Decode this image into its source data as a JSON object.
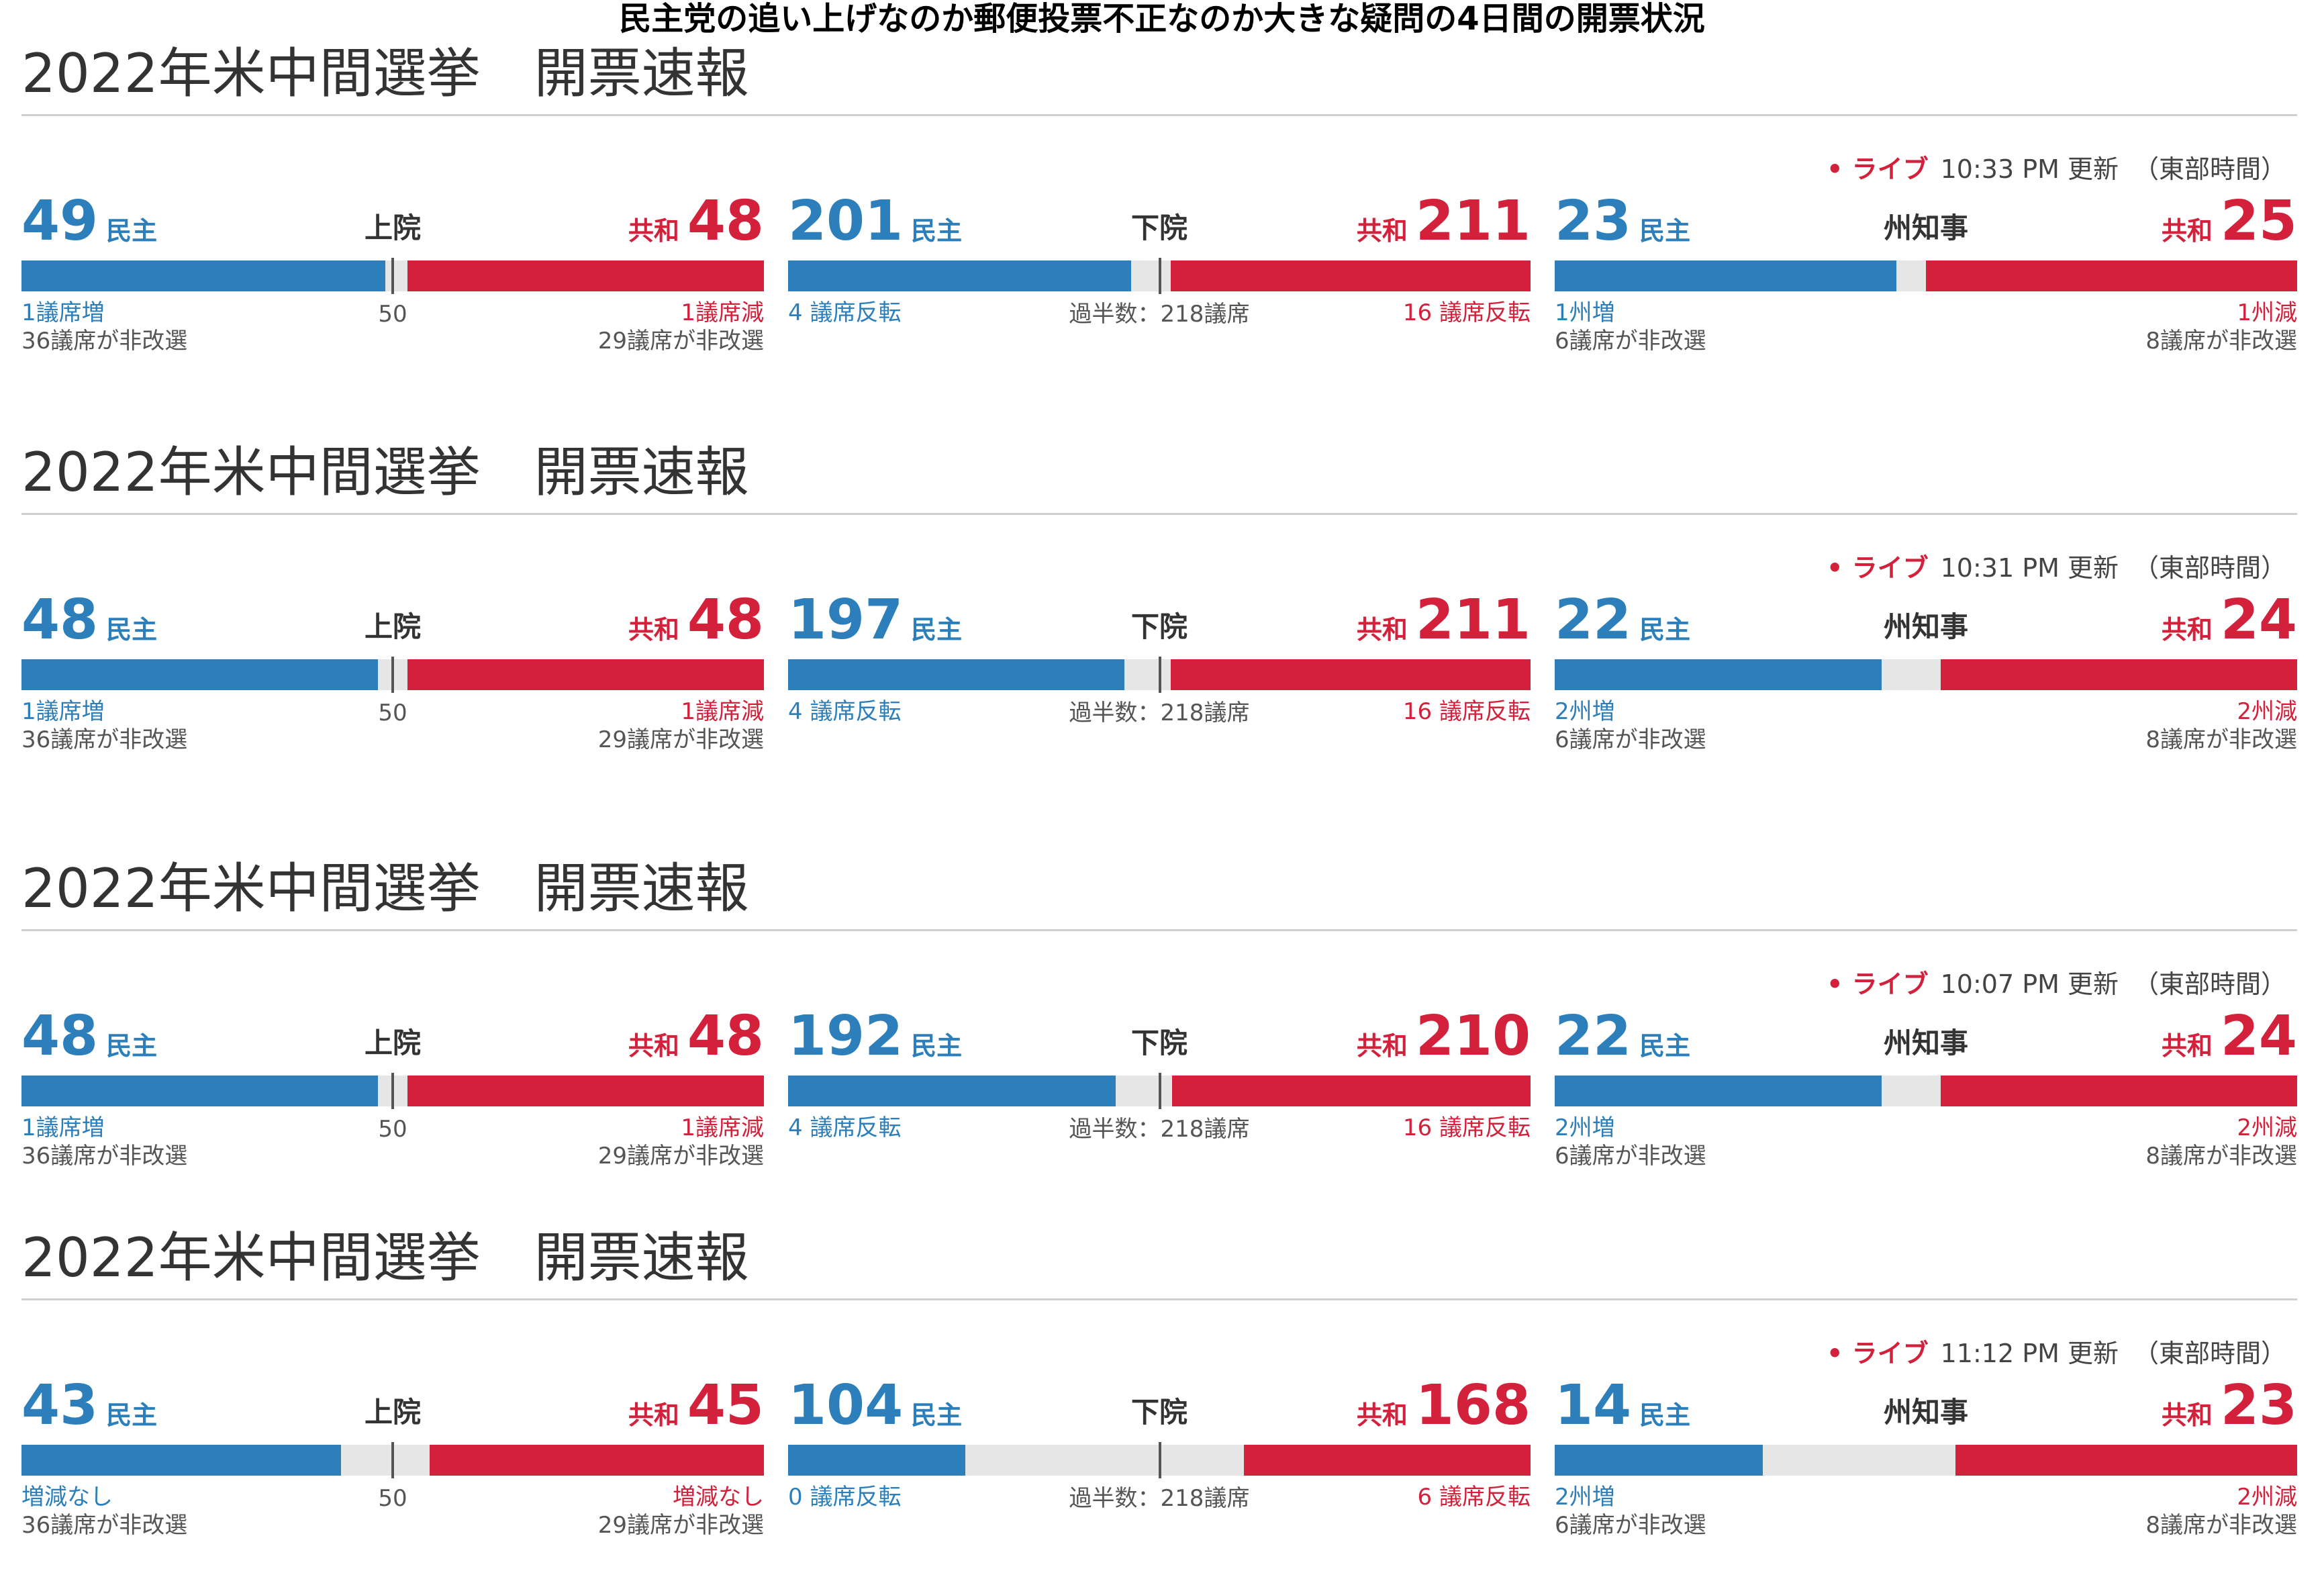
{
  "page_title": "民主党の追い上げなのか郵便投票不正なのか大きな疑問の4日間の開票状況",
  "colors": {
    "dem": "#2c7fba",
    "rep": "#d3203b",
    "neutral": "#e6e6e6"
  },
  "chart_data": [
    {
      "type": "bar",
      "title": "2022年米中間選挙　開票速報",
      "live_label": "ライブ",
      "updated": "10:33 PM 更新",
      "timezone": "（東部時間）",
      "races": [
        {
          "chamber": "上院",
          "dem_label": "民主",
          "rep_label": "共和",
          "dem": 49,
          "rep": 48,
          "total": 100,
          "marker": 50,
          "marker_label": "50",
          "dem_note": "1議席増",
          "dem_not_up": "36議席が非改選",
          "rep_note": "1議席減",
          "rep_not_up": "29議席が非改選"
        },
        {
          "chamber": "下院",
          "dem_label": "民主",
          "rep_label": "共和",
          "dem": 201,
          "rep": 211,
          "total": 435,
          "marker": 218,
          "marker_label": "過半数：218議席",
          "dem_note": "4 議席反転",
          "dem_not_up": "",
          "rep_note": "16 議席反転",
          "rep_not_up": ""
        },
        {
          "chamber": "州知事",
          "dem_label": "民主",
          "rep_label": "共和",
          "dem": 23,
          "rep": 25,
          "total": 50,
          "marker": null,
          "marker_label": "",
          "dem_note": "1州増",
          "dem_not_up": "6議席が非改選",
          "rep_note": "1州減",
          "rep_not_up": "8議席が非改選"
        }
      ]
    },
    {
      "type": "bar",
      "title": "2022年米中間選挙　開票速報",
      "live_label": "ライブ",
      "updated": "10:31 PM 更新",
      "timezone": "（東部時間）",
      "races": [
        {
          "chamber": "上院",
          "dem_label": "民主",
          "rep_label": "共和",
          "dem": 48,
          "rep": 48,
          "total": 100,
          "marker": 50,
          "marker_label": "50",
          "dem_note": "1議席増",
          "dem_not_up": "36議席が非改選",
          "rep_note": "1議席減",
          "rep_not_up": "29議席が非改選"
        },
        {
          "chamber": "下院",
          "dem_label": "民主",
          "rep_label": "共和",
          "dem": 197,
          "rep": 211,
          "total": 435,
          "marker": 218,
          "marker_label": "過半数：218議席",
          "dem_note": "4 議席反転",
          "dem_not_up": "",
          "rep_note": "16 議席反転",
          "rep_not_up": ""
        },
        {
          "chamber": "州知事",
          "dem_label": "民主",
          "rep_label": "共和",
          "dem": 22,
          "rep": 24,
          "total": 50,
          "marker": null,
          "marker_label": "",
          "dem_note": "2州増",
          "dem_not_up": "6議席が非改選",
          "rep_note": "2州減",
          "rep_not_up": "8議席が非改選"
        }
      ]
    },
    {
      "type": "bar",
      "title": "2022年米中間選挙　開票速報",
      "live_label": "ライブ",
      "updated": "10:07 PM 更新",
      "timezone": "（東部時間）",
      "races": [
        {
          "chamber": "上院",
          "dem_label": "民主",
          "rep_label": "共和",
          "dem": 48,
          "rep": 48,
          "total": 100,
          "marker": 50,
          "marker_label": "50",
          "dem_note": "1議席増",
          "dem_not_up": "36議席が非改選",
          "rep_note": "1議席減",
          "rep_not_up": "29議席が非改選"
        },
        {
          "chamber": "下院",
          "dem_label": "民主",
          "rep_label": "共和",
          "dem": 192,
          "rep": 210,
          "total": 435,
          "marker": 218,
          "marker_label": "過半数：218議席",
          "dem_note": "4 議席反転",
          "dem_not_up": "",
          "rep_note": "16 議席反転",
          "rep_not_up": ""
        },
        {
          "chamber": "州知事",
          "dem_label": "民主",
          "rep_label": "共和",
          "dem": 22,
          "rep": 24,
          "total": 50,
          "marker": null,
          "marker_label": "",
          "dem_note": "2州増",
          "dem_not_up": "6議席が非改選",
          "rep_note": "2州減",
          "rep_not_up": "8議席が非改選"
        }
      ]
    },
    {
      "type": "bar",
      "title": "2022年米中間選挙　開票速報",
      "live_label": "ライブ",
      "updated": "11:12 PM 更新",
      "timezone": "（東部時間）",
      "races": [
        {
          "chamber": "上院",
          "dem_label": "民主",
          "rep_label": "共和",
          "dem": 43,
          "rep": 45,
          "total": 100,
          "marker": 50,
          "marker_label": "50",
          "dem_note": "増減なし",
          "dem_not_up": "36議席が非改選",
          "rep_note": "増減なし",
          "rep_not_up": "29議席が非改選"
        },
        {
          "chamber": "下院",
          "dem_label": "民主",
          "rep_label": "共和",
          "dem": 104,
          "rep": 168,
          "total": 435,
          "marker": 218,
          "marker_label": "過半数：218議席",
          "dem_note": "0 議席反転",
          "dem_not_up": "",
          "rep_note": "6 議席反転",
          "rep_not_up": ""
        },
        {
          "chamber": "州知事",
          "dem_label": "民主",
          "rep_label": "共和",
          "dem": 14,
          "rep": 23,
          "total": 50,
          "marker": null,
          "marker_label": "",
          "dem_note": "2州増",
          "dem_not_up": "6議席が非改選",
          "rep_note": "2州減",
          "rep_not_up": "8議席が非改選"
        }
      ]
    }
  ]
}
